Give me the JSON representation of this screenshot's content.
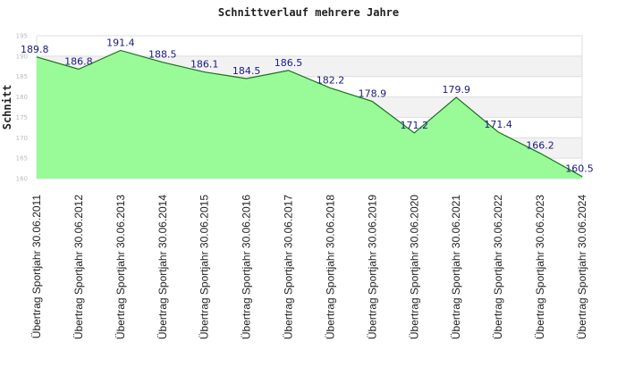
{
  "chart_data": {
    "type": "area",
    "title": "Schnittverlauf mehrere Jahre",
    "ylabel": "Schnitt",
    "xlabel": "",
    "ylim": [
      160,
      195
    ],
    "yticks": [
      160,
      165,
      170,
      175,
      180,
      185,
      190,
      195
    ],
    "grid": true,
    "legend": "none",
    "categories": [
      "Übertrag Sportjahr 30.06.2011",
      "Übertrag Sportjahr 30.06.2012",
      "Übertrag Sportjahr 30.06.2013",
      "Übertrag Sportjahr 30.06.2014",
      "Übertrag Sportjahr 30.06.2015",
      "Übertrag Sportjahr 30.06.2016",
      "Übertrag Sportjahr 30.06.2017",
      "Übertrag Sportjahr 30.06.2018",
      "Übertrag Sportjahr 30.06.2019",
      "Übertrag Sportjahr 30.06.2020",
      "Übertrag Sportjahr 30.06.2021",
      "Übertrag Sportjahr 30.06.2022",
      "Übertrag Sportjahr 30.06.2023",
      "Übertrag Sportjahr 30.06.2024"
    ],
    "values": [
      189.8,
      186.8,
      191.4,
      188.5,
      186.1,
      184.5,
      186.5,
      182.2,
      178.9,
      171.2,
      179.9,
      171.4,
      166.2,
      160.5
    ],
    "data_labels": [
      "189.8",
      "186.8",
      "191.4",
      "188.5",
      "186.1",
      "184.5",
      "186.5",
      "182.2",
      "178.9",
      "171.2",
      "179.9",
      "171.4",
      "166.2",
      "160.5"
    ],
    "colors": {
      "fill": "#98fb98",
      "line": "#1f6e1f",
      "band": "#f2f2f2",
      "grid": "#dddddd",
      "label": "#1a1a80"
    }
  }
}
